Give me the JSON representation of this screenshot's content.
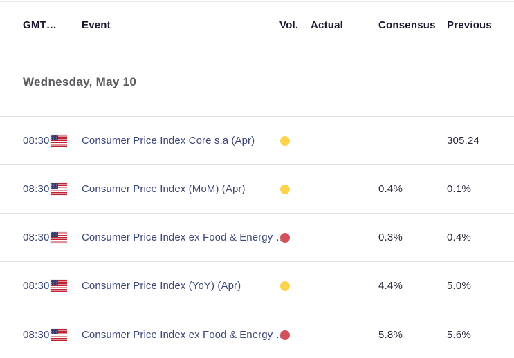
{
  "calendar": {
    "header": {
      "gmt": "GMT…",
      "event": "Event",
      "vol": "Vol.",
      "actual": "Actual",
      "consensus": "Consensus",
      "previous": "Previous"
    },
    "date_row": {
      "label": "Wednesday, May 10"
    },
    "rows": [
      {
        "time": "08:30",
        "country": "United States",
        "event": "Consumer Price Index Core s.a (Apr)",
        "volatility": "medium",
        "actual": "",
        "consensus": "",
        "previous": "305.24"
      },
      {
        "time": "08:30",
        "country": "United States",
        "event": "Consumer Price Index (MoM) (Apr)",
        "volatility": "medium",
        "actual": "",
        "consensus": "0.4%",
        "previous": "0.1%"
      },
      {
        "time": "08:30",
        "country": "United States",
        "event": "Consumer Price Index ex Food & Energy …",
        "volatility": "high",
        "actual": "",
        "consensus": "0.3%",
        "previous": "0.4%"
      },
      {
        "time": "08:30",
        "country": "United States",
        "event": "Consumer Price Index (YoY) (Apr)",
        "volatility": "medium",
        "actual": "",
        "consensus": "4.4%",
        "previous": "5.0%"
      },
      {
        "time": "08:30",
        "country": "United States",
        "event": "Consumer Price Index ex Food & Energy …",
        "volatility": "high",
        "actual": "",
        "consensus": "5.8%",
        "previous": "5.6%"
      }
    ],
    "colors": {
      "event_link": "#3d4678",
      "volatility_medium": "#fdd34d",
      "volatility_high": "#d4505a",
      "header_text": "#17172e",
      "date_text": "#5a5b5e",
      "value_text": "#26283a",
      "divider": "#e0e0e0"
    }
  }
}
